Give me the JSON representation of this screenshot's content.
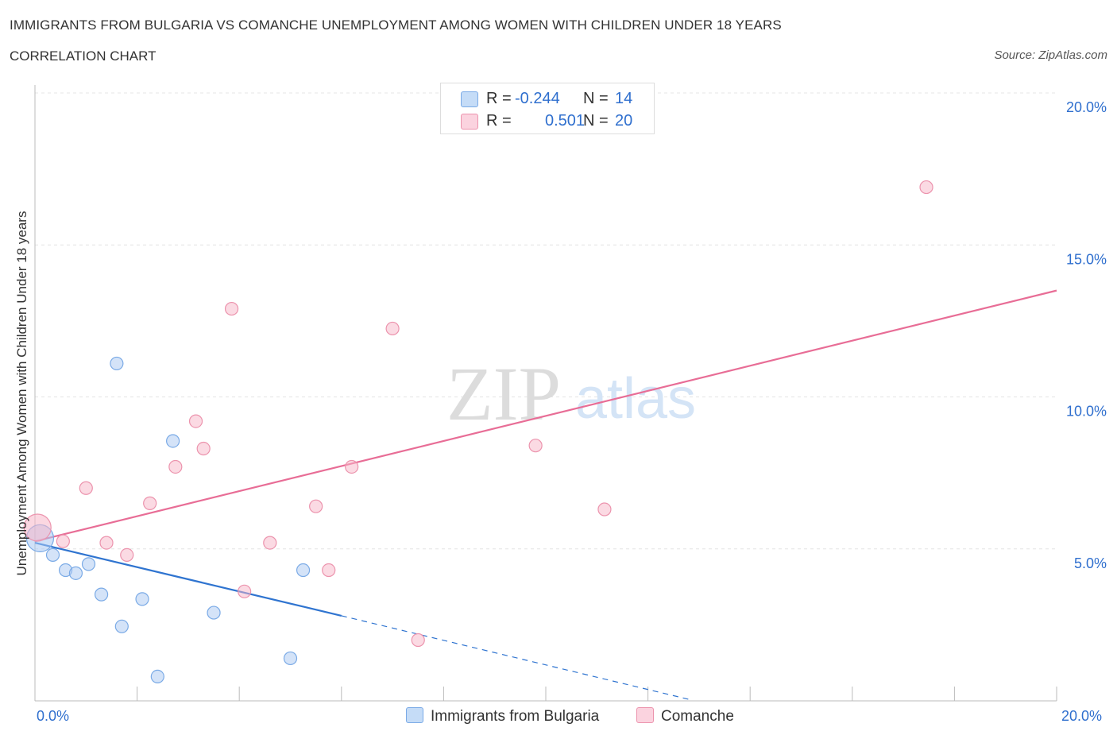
{
  "header": {
    "title": "IMMIGRANTS FROM BULGARIA VS COMANCHE UNEMPLOYMENT AMONG WOMEN WITH CHILDREN UNDER 18 YEARS",
    "subtitle": "CORRELATION CHART",
    "source": "Source: ZipAtlas.com"
  },
  "watermark": {
    "zip": "ZIP",
    "atlas": "atlas"
  },
  "legend": {
    "r_label": "R =",
    "n_label": "N =",
    "series": [
      {
        "name": "Immigrants from Bulgaria",
        "r": "-0.244",
        "n": "14",
        "color": "#a9c8f2"
      },
      {
        "name": "Comanche",
        "r": "0.501",
        "n": "20",
        "color": "#f7b6c8"
      }
    ]
  },
  "chart_data": {
    "type": "scatter",
    "title": "IMMIGRANTS FROM BULGARIA VS COMANCHE UNEMPLOYMENT AMONG WOMEN WITH CHILDREN UNDER 18 YEARS",
    "xlabel": "",
    "ylabel": "Unemployment Among Women with Children Under 18 years",
    "xlim": [
      0,
      20
    ],
    "ylim": [
      0,
      20
    ],
    "x_tick_labels": [
      "0.0%",
      "20.0%"
    ],
    "y_ticks": [
      5,
      10,
      15,
      20
    ],
    "y_tick_labels": [
      "5.0%",
      "10.0%",
      "15.0%",
      "20.0%"
    ],
    "grid": true,
    "legend_position": "top-center",
    "series": [
      {
        "name": "Immigrants from Bulgaria",
        "color": "#a9c8f2",
        "stroke": "#7aaae6",
        "trend_color": "#2f74d0",
        "trend": {
          "x0": 0,
          "y0": 5.2,
          "x1": 6.0,
          "y1": 2.8,
          "dash_to_x": 12.8,
          "dash_to_y": 0.05
        },
        "points": [
          {
            "x": 0.1,
            "y": 5.35,
            "big": true
          },
          {
            "x": 0.35,
            "y": 4.8
          },
          {
            "x": 0.6,
            "y": 4.3
          },
          {
            "x": 0.8,
            "y": 4.2
          },
          {
            "x": 1.05,
            "y": 4.5
          },
          {
            "x": 1.3,
            "y": 3.5
          },
          {
            "x": 1.6,
            "y": 11.1
          },
          {
            "x": 1.7,
            "y": 2.45
          },
          {
            "x": 2.1,
            "y": 3.35
          },
          {
            "x": 2.4,
            "y": 0.8
          },
          {
            "x": 2.7,
            "y": 8.55
          },
          {
            "x": 3.5,
            "y": 2.9
          },
          {
            "x": 5.0,
            "y": 1.4
          },
          {
            "x": 5.25,
            "y": 4.3
          }
        ]
      },
      {
        "name": "Comanche",
        "color": "#f7b6c8",
        "stroke": "#ec93ad",
        "trend_color": "#e86d96",
        "trend": {
          "x0": 0,
          "y0": 5.25,
          "x1": 20,
          "y1": 13.5
        },
        "points": [
          {
            "x": 0.05,
            "y": 5.7,
            "big": true
          },
          {
            "x": 0.55,
            "y": 5.25
          },
          {
            "x": 1.0,
            "y": 7.0
          },
          {
            "x": 1.4,
            "y": 5.2
          },
          {
            "x": 1.8,
            "y": 4.8
          },
          {
            "x": 2.25,
            "y": 6.5
          },
          {
            "x": 2.75,
            "y": 7.7
          },
          {
            "x": 3.15,
            "y": 9.2
          },
          {
            "x": 3.3,
            "y": 8.3
          },
          {
            "x": 3.85,
            "y": 12.9
          },
          {
            "x": 4.1,
            "y": 3.6
          },
          {
            "x": 4.6,
            "y": 5.2
          },
          {
            "x": 5.5,
            "y": 6.4
          },
          {
            "x": 5.75,
            "y": 4.3
          },
          {
            "x": 6.2,
            "y": 7.7
          },
          {
            "x": 7.0,
            "y": 12.25
          },
          {
            "x": 7.5,
            "y": 2.0
          },
          {
            "x": 9.8,
            "y": 8.4
          },
          {
            "x": 11.15,
            "y": 6.3
          },
          {
            "x": 17.45,
            "y": 16.9
          }
        ]
      }
    ]
  }
}
